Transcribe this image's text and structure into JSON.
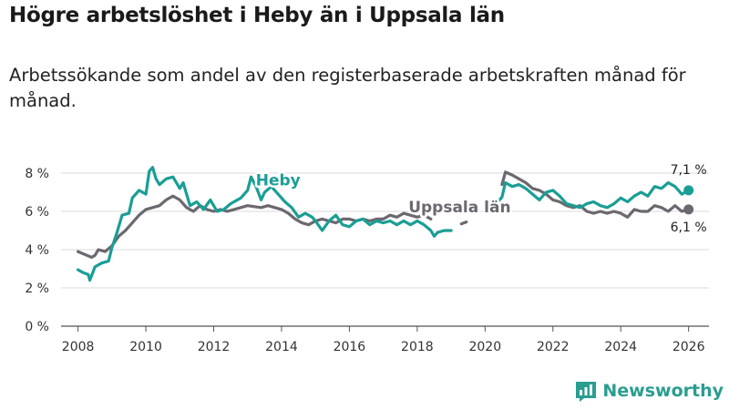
{
  "header": {
    "title": "Högre arbetslöshet i Heby än i Uppsala län",
    "subtitle": "Arbetssökande som andel av den registerbaserade arbetskraften månad för månad."
  },
  "brand": {
    "name": "Newsworthy"
  },
  "colors": {
    "heby": "#1a9e95",
    "uppsala": "#6b6870",
    "grid": "#d9d9d9",
    "axis": "#555555"
  },
  "chart_data": {
    "type": "line",
    "title": "Högre arbetslöshet i Heby än i Uppsala län",
    "xlabel": "",
    "ylabel": "",
    "xlim": [
      2007.5,
      2026.6
    ],
    "ylim": [
      0,
      8
    ],
    "x_ticks": [
      2008,
      2010,
      2012,
      2014,
      2016,
      2018,
      2020,
      2022,
      2024,
      2026
    ],
    "y_ticks": [
      0,
      2,
      4,
      6,
      8
    ],
    "y_tick_labels": [
      "0 %",
      "2 %",
      "4 %",
      "6 %",
      "8 %"
    ],
    "series": [
      {
        "name": "Uppsala län",
        "label": "Uppsala län",
        "color": "#6b6870",
        "end_label": "6,1 %",
        "segments": [
          [
            [
              2008.0,
              3.9
            ],
            [
              2008.2,
              3.75
            ],
            [
              2008.4,
              3.6
            ],
            [
              2008.5,
              3.7
            ],
            [
              2008.6,
              4.0
            ],
            [
              2008.8,
              3.9
            ],
            [
              2009.0,
              4.2
            ],
            [
              2009.2,
              4.7
            ],
            [
              2009.4,
              5.0
            ],
            [
              2009.6,
              5.4
            ],
            [
              2009.8,
              5.8
            ],
            [
              2010.0,
              6.1
            ],
            [
              2010.2,
              6.2
            ],
            [
              2010.4,
              6.3
            ],
            [
              2010.6,
              6.6
            ],
            [
              2010.8,
              6.8
            ],
            [
              2011.0,
              6.6
            ],
            [
              2011.2,
              6.2
            ],
            [
              2011.4,
              6.0
            ],
            [
              2011.6,
              6.3
            ],
            [
              2011.8,
              6.1
            ],
            [
              2012.0,
              6.0
            ],
            [
              2012.2,
              6.1
            ],
            [
              2012.4,
              6.0
            ],
            [
              2012.6,
              6.1
            ],
            [
              2012.8,
              6.2
            ],
            [
              2013.0,
              6.3
            ],
            [
              2013.2,
              6.25
            ],
            [
              2013.4,
              6.2
            ],
            [
              2013.6,
              6.3
            ],
            [
              2013.8,
              6.2
            ],
            [
              2014.0,
              6.1
            ],
            [
              2014.2,
              5.9
            ],
            [
              2014.4,
              5.6
            ],
            [
              2014.6,
              5.4
            ],
            [
              2014.8,
              5.3
            ],
            [
              2015.0,
              5.5
            ],
            [
              2015.2,
              5.6
            ],
            [
              2015.4,
              5.5
            ],
            [
              2015.6,
              5.4
            ],
            [
              2015.8,
              5.6
            ],
            [
              2016.0,
              5.6
            ],
            [
              2016.2,
              5.5
            ],
            [
              2016.4,
              5.6
            ],
            [
              2016.6,
              5.5
            ],
            [
              2016.8,
              5.6
            ],
            [
              2017.0,
              5.6
            ],
            [
              2017.2,
              5.8
            ],
            [
              2017.4,
              5.7
            ],
            [
              2017.6,
              5.9
            ],
            [
              2017.8,
              5.8
            ],
            [
              2018.0,
              5.7
            ],
            [
              2018.2,
              5.8
            ],
            [
              2018.4,
              5.6
            ]
          ],
          [
            [
              2019.3,
              5.35
            ],
            [
              2019.45,
              5.45
            ]
          ],
          [
            [
              2020.5,
              7.4
            ],
            [
              2020.6,
              8.05
            ],
            [
              2020.8,
              7.9
            ],
            [
              2021.0,
              7.7
            ],
            [
              2021.2,
              7.5
            ],
            [
              2021.4,
              7.2
            ],
            [
              2021.6,
              7.1
            ],
            [
              2021.8,
              6.9
            ],
            [
              2022.0,
              6.6
            ],
            [
              2022.2,
              6.5
            ],
            [
              2022.4,
              6.3
            ],
            [
              2022.6,
              6.2
            ],
            [
              2022.8,
              6.3
            ],
            [
              2023.0,
              6.0
            ],
            [
              2023.2,
              5.9
            ],
            [
              2023.4,
              6.0
            ],
            [
              2023.6,
              5.9
            ],
            [
              2023.8,
              6.0
            ],
            [
              2024.0,
              5.9
            ],
            [
              2024.2,
              5.7
            ],
            [
              2024.4,
              6.1
            ],
            [
              2024.6,
              6.0
            ],
            [
              2024.8,
              6.0
            ],
            [
              2025.0,
              6.3
            ],
            [
              2025.2,
              6.2
            ],
            [
              2025.4,
              6.0
            ],
            [
              2025.6,
              6.3
            ],
            [
              2025.8,
              6.0
            ],
            [
              2026.0,
              6.1
            ]
          ]
        ]
      },
      {
        "name": "Heby",
        "label": "Heby",
        "color": "#1a9e95",
        "end_label": "7,1 %",
        "segments": [
          [
            [
              2008.0,
              2.95
            ],
            [
              2008.15,
              2.8
            ],
            [
              2008.3,
              2.7
            ],
            [
              2008.35,
              2.4
            ],
            [
              2008.5,
              3.1
            ],
            [
              2008.7,
              3.3
            ],
            [
              2008.9,
              3.4
            ],
            [
              2009.0,
              4.1
            ],
            [
              2009.15,
              4.9
            ],
            [
              2009.3,
              5.8
            ],
            [
              2009.5,
              5.9
            ],
            [
              2009.6,
              6.7
            ],
            [
              2009.8,
              7.1
            ],
            [
              2010.0,
              6.9
            ],
            [
              2010.1,
              8.1
            ],
            [
              2010.2,
              8.3
            ],
            [
              2010.3,
              7.7
            ],
            [
              2010.4,
              7.4
            ],
            [
              2010.6,
              7.7
            ],
            [
              2010.8,
              7.8
            ],
            [
              2011.0,
              7.2
            ],
            [
              2011.1,
              7.5
            ],
            [
              2011.3,
              6.3
            ],
            [
              2011.5,
              6.5
            ],
            [
              2011.7,
              6.1
            ],
            [
              2011.9,
              6.6
            ],
            [
              2012.1,
              6.0
            ],
            [
              2012.3,
              6.1
            ],
            [
              2012.5,
              6.4
            ],
            [
              2012.8,
              6.7
            ],
            [
              2013.0,
              7.1
            ],
            [
              2013.1,
              7.8
            ],
            [
              2013.25,
              7.3
            ],
            [
              2013.4,
              6.6
            ],
            [
              2013.5,
              7.0
            ],
            [
              2013.7,
              7.3
            ],
            [
              2013.9,
              6.9
            ],
            [
              2014.1,
              6.5
            ],
            [
              2014.3,
              6.2
            ],
            [
              2014.5,
              5.7
            ],
            [
              2014.7,
              5.9
            ],
            [
              2014.9,
              5.7
            ],
            [
              2015.0,
              5.5
            ],
            [
              2015.2,
              5.0
            ],
            [
              2015.4,
              5.5
            ],
            [
              2015.6,
              5.8
            ],
            [
              2015.8,
              5.3
            ],
            [
              2016.0,
              5.2
            ],
            [
              2016.2,
              5.5
            ],
            [
              2016.4,
              5.6
            ],
            [
              2016.6,
              5.3
            ],
            [
              2016.8,
              5.5
            ],
            [
              2017.0,
              5.4
            ],
            [
              2017.2,
              5.5
            ],
            [
              2017.4,
              5.3
            ],
            [
              2017.6,
              5.5
            ],
            [
              2017.8,
              5.3
            ],
            [
              2018.0,
              5.5
            ],
            [
              2018.2,
              5.3
            ],
            [
              2018.4,
              5.0
            ],
            [
              2018.5,
              4.7
            ],
            [
              2018.6,
              4.9
            ],
            [
              2018.8,
              5.0
            ],
            [
              2019.0,
              5.0
            ]
          ],
          [
            [
              2020.35,
              6.45
            ],
            [
              2020.5,
              6.75
            ],
            [
              2020.6,
              7.5
            ],
            [
              2020.8,
              7.3
            ],
            [
              2021.0,
              7.4
            ],
            [
              2021.2,
              7.2
            ],
            [
              2021.4,
              6.9
            ],
            [
              2021.6,
              6.6
            ],
            [
              2021.8,
              7.0
            ],
            [
              2022.0,
              7.1
            ],
            [
              2022.2,
              6.8
            ],
            [
              2022.4,
              6.4
            ],
            [
              2022.6,
              6.3
            ],
            [
              2022.8,
              6.2
            ],
            [
              2023.0,
              6.4
            ],
            [
              2023.2,
              6.5
            ],
            [
              2023.4,
              6.3
            ],
            [
              2023.6,
              6.2
            ],
            [
              2023.8,
              6.4
            ],
            [
              2024.0,
              6.7
            ],
            [
              2024.2,
              6.5
            ],
            [
              2024.4,
              6.8
            ],
            [
              2024.6,
              7.0
            ],
            [
              2024.8,
              6.8
            ],
            [
              2025.0,
              7.3
            ],
            [
              2025.2,
              7.2
            ],
            [
              2025.4,
              7.5
            ],
            [
              2025.6,
              7.3
            ],
            [
              2025.8,
              6.9
            ],
            [
              2026.0,
              7.1
            ]
          ]
        ]
      }
    ]
  }
}
